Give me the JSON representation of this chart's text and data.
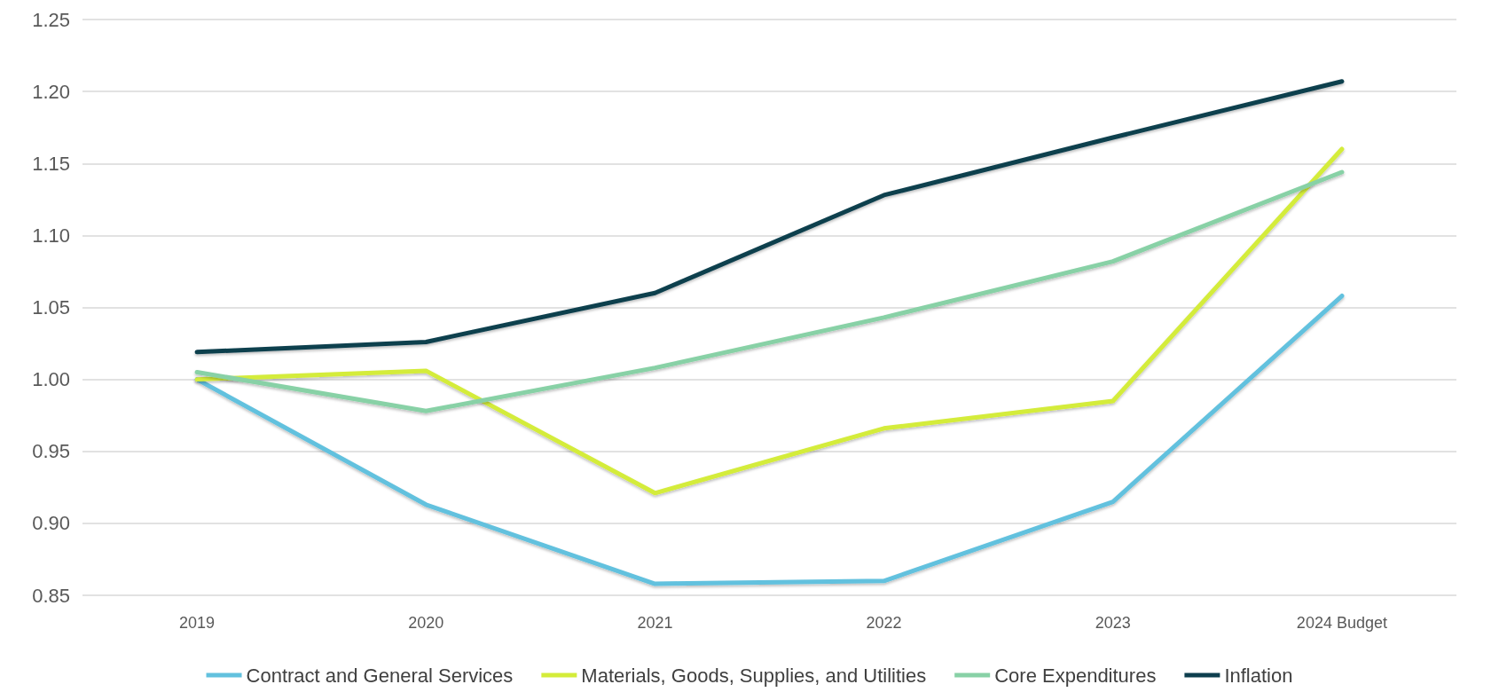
{
  "chart_data": {
    "type": "line",
    "categories": [
      "2019",
      "2020",
      "2021",
      "2022",
      "2023",
      "2024 Budget"
    ],
    "ylim": [
      0.85,
      1.25
    ],
    "yticks": [
      0.85,
      {
        "value": 0.9,
        "label": "0.90"
      },
      0.95,
      {
        "value": 1,
        "label": "1.00"
      },
      1.05,
      {
        "value": 1.1,
        "label": "1.10"
      },
      1.15,
      {
        "value": 1.2,
        "label": "1.20"
      },
      1.25
    ],
    "grid": "y",
    "legend": "bottom",
    "marker": "none",
    "series": [
      {
        "name": "Contract and General Services",
        "color": "#62c1de",
        "values": [
          1.0,
          0.913,
          0.858,
          0.86,
          0.915,
          1.058
        ]
      },
      {
        "name": "Materials, Goods, Supplies, and Utilities",
        "color": "#d4ec3a",
        "values": [
          1.0,
          1.006,
          0.921,
          0.966,
          0.985,
          1.16
        ]
      },
      {
        "name": "Core Expenditures",
        "color": "#88d1a6",
        "values": [
          1.005,
          0.978,
          1.008,
          1.043,
          1.082,
          1.144
        ]
      },
      {
        "name": "Inflation",
        "color": "#0e3f4e",
        "values": [
          1.019,
          1.026,
          1.06,
          1.128,
          1.168,
          1.207
        ]
      }
    ]
  }
}
